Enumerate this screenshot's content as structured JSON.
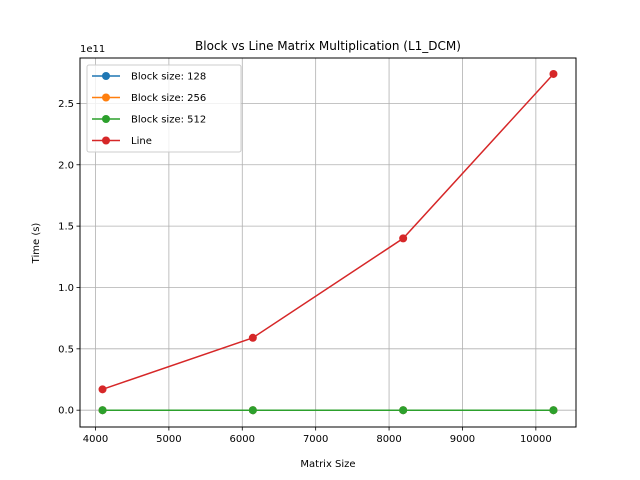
{
  "chart_data": {
    "type": "line",
    "title": "Block vs Line Matrix Multiplication (L1_DCM)",
    "xlabel": "Matrix Size",
    "ylabel": "Time (s)",
    "y_offset_text": "1e11",
    "x": [
      4096,
      6144,
      8192,
      10240
    ],
    "xlim": [
      3789,
      10547
    ],
    "ylim": [
      -0.137,
      2.87
    ],
    "y_unit_multiplier": "1e11",
    "x_ticks": [
      4000,
      5000,
      6000,
      7000,
      8000,
      9000,
      10000
    ],
    "x_tick_labels": [
      "4000",
      "5000",
      "6000",
      "7000",
      "8000",
      "9000",
      "10000"
    ],
    "y_ticks": [
      0.0,
      0.5,
      1.0,
      1.5,
      2.0,
      2.5
    ],
    "y_tick_labels": [
      "0.0",
      "0.5",
      "1.0",
      "1.5",
      "2.0",
      "2.5"
    ],
    "grid": true,
    "legend_position": "top-left",
    "series": [
      {
        "name": "Block size: 128",
        "color": "#1f77b4",
        "values": [
          0.0,
          0.0,
          0.0,
          0.0
        ]
      },
      {
        "name": "Block size: 256",
        "color": "#ff7f0e",
        "values": [
          0.0,
          0.0,
          0.0,
          0.0
        ]
      },
      {
        "name": "Block size: 512",
        "color": "#2ca02c",
        "values": [
          0.0,
          0.0,
          0.0,
          0.0
        ]
      },
      {
        "name": "Line",
        "color": "#d62728",
        "values": [
          0.17,
          0.59,
          1.4,
          2.74
        ]
      }
    ]
  }
}
